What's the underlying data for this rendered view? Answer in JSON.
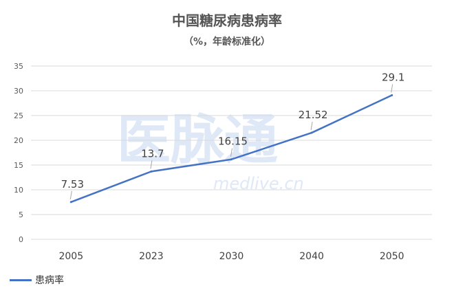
{
  "chart_data": {
    "type": "line",
    "title": "中国糖尿病患病率",
    "subtitle": "（%，年龄标准化）",
    "categories": [
      "2005",
      "2023",
      "2030",
      "2040",
      "2050"
    ],
    "series": [
      {
        "name": "患病率",
        "values": [
          7.53,
          13.7,
          16.15,
          21.52,
          29.1
        ],
        "color": "#4472C4"
      }
    ],
    "data_labels": [
      "7.53",
      "13.7",
      "16.15",
      "21.52",
      "29.1"
    ],
    "y_ticks": [
      "0",
      "5",
      "10",
      "15",
      "20",
      "25",
      "30",
      "35"
    ],
    "ylim": [
      0,
      35
    ],
    "grid": true,
    "legend_position": "bottom-left"
  },
  "watermark": {
    "brand": "医脉通",
    "url": "medlive.cn"
  }
}
